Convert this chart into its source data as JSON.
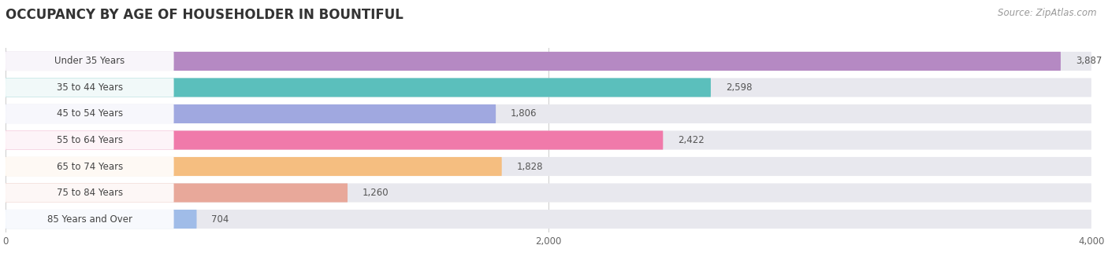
{
  "title": "OCCUPANCY BY AGE OF HOUSEHOLDER IN BOUNTIFUL",
  "source": "Source: ZipAtlas.com",
  "categories": [
    "Under 35 Years",
    "35 to 44 Years",
    "45 to 54 Years",
    "55 to 64 Years",
    "65 to 74 Years",
    "75 to 84 Years",
    "85 Years and Over"
  ],
  "values": [
    3887,
    2598,
    1806,
    2422,
    1828,
    1260,
    704
  ],
  "bar_colors": [
    "#b589c3",
    "#5bbfbc",
    "#a0a8e0",
    "#f07aaa",
    "#f5be80",
    "#e8a89a",
    "#a0bce8"
  ],
  "bar_bg_color": "#e8e8ee",
  "background_color": "#ffffff",
  "xlim": [
    0,
    4000
  ],
  "xticks": [
    0,
    2000,
    4000
  ],
  "title_fontsize": 12,
  "label_fontsize": 8.5,
  "value_fontsize": 8.5,
  "source_fontsize": 8.5,
  "bar_height": 0.72,
  "bar_gap": 0.28
}
